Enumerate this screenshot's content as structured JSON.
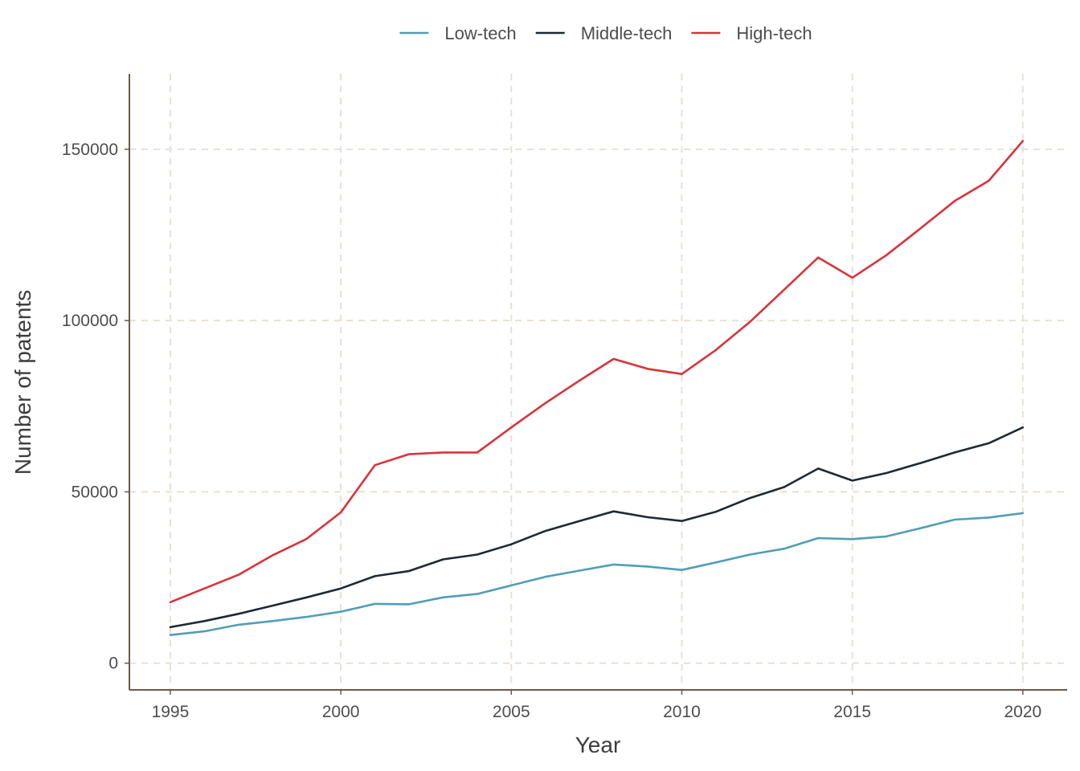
{
  "chart_data": {
    "type": "line",
    "title": "",
    "xlabel": "Year",
    "ylabel": "Number of patents",
    "x": [
      1995,
      1996,
      1997,
      1998,
      1999,
      2000,
      2001,
      2002,
      2003,
      2004,
      2005,
      2006,
      2007,
      2008,
      2009,
      2010,
      2011,
      2012,
      2013,
      2014,
      2015,
      2016,
      2017,
      2018,
      2019,
      2020
    ],
    "xlim": [
      1993.8,
      2021.3
    ],
    "ylim": [
      -7800,
      172000
    ],
    "x_ticks": [
      "1995",
      "2000",
      "2005",
      "2010",
      "2015",
      "2020"
    ],
    "y_ticks": [
      "0",
      "50000",
      "100000",
      "150000"
    ],
    "grid": true,
    "grid_style": "dashed",
    "legend_position": "top",
    "series": [
      {
        "name": "Low-tech",
        "color": "#529eb5",
        "values": [
          8200,
          9300,
          11200,
          12300,
          13500,
          15000,
          17300,
          17200,
          19200,
          20200,
          22700,
          25200,
          27000,
          28800,
          28200,
          27200,
          29400,
          31700,
          33400,
          36500,
          36200,
          37000,
          39400,
          41900,
          42500,
          43800
        ]
      },
      {
        "name": "Middle-tech",
        "color": "#1e2a32",
        "values": [
          10500,
          12300,
          14400,
          16800,
          19200,
          21800,
          25400,
          26900,
          30300,
          31700,
          34700,
          38600,
          41500,
          44300,
          42600,
          41500,
          44200,
          48200,
          51400,
          56800,
          53300,
          55500,
          58400,
          61500,
          64200,
          68800
        ]
      },
      {
        "name": "High-tech",
        "color": "#d8333a",
        "values": [
          17800,
          21800,
          25800,
          31500,
          36300,
          44000,
          57800,
          61000,
          61500,
          61500,
          68800,
          75900,
          82500,
          88800,
          85900,
          84400,
          91400,
          99600,
          109000,
          118400,
          112500,
          119100,
          126900,
          134900,
          140800,
          152400
        ]
      }
    ]
  }
}
